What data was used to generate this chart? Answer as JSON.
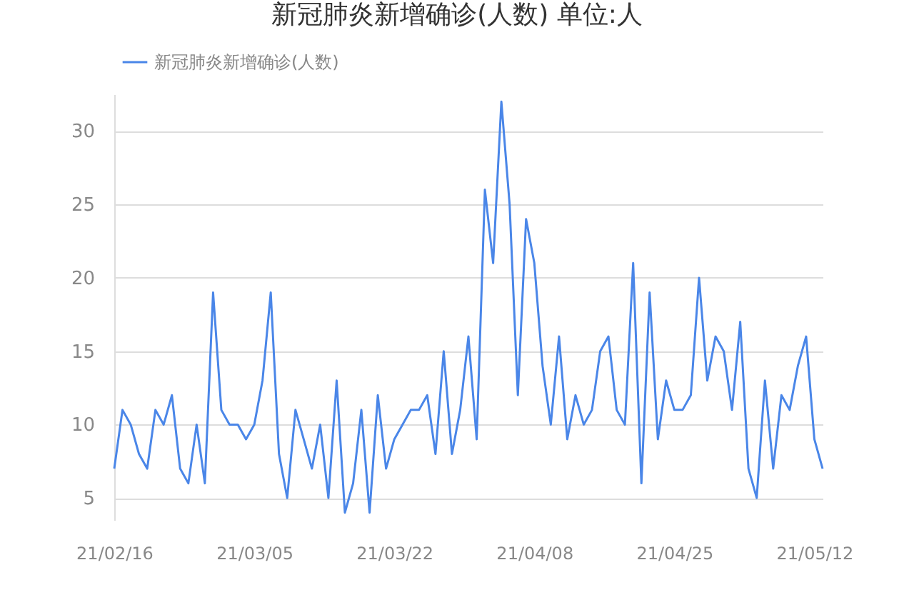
{
  "chart_data": {
    "type": "line",
    "title": "新冠肺炎新增确诊(人数) 单位:人",
    "categories": [
      "21/02/16",
      null,
      null,
      null,
      null,
      null,
      null,
      null,
      null,
      null,
      null,
      null,
      null,
      null,
      null,
      null,
      null,
      "21/03/05",
      null,
      null,
      null,
      null,
      null,
      null,
      null,
      null,
      null,
      null,
      null,
      null,
      null,
      null,
      null,
      null,
      "21/03/22",
      null,
      null,
      null,
      null,
      null,
      null,
      null,
      null,
      null,
      null,
      null,
      null,
      null,
      null,
      null,
      null,
      "21/04/08",
      null,
      null,
      null,
      null,
      null,
      null,
      null,
      null,
      null,
      null,
      null,
      null,
      null,
      null,
      null,
      null,
      "21/04/25",
      null,
      null,
      null,
      null,
      null,
      null,
      null,
      null,
      null,
      null,
      null,
      null,
      null,
      null,
      null,
      null,
      "21/05/12",
      null
    ],
    "series": [
      {
        "name": "新冠肺炎新增确诊(人数)",
        "color": "#4a86e8",
        "values": [
          7,
          11,
          10,
          8,
          7,
          11,
          10,
          12,
          7,
          6,
          10,
          6,
          19,
          11,
          10,
          10,
          9,
          10,
          13,
          19,
          8,
          5,
          11,
          9,
          7,
          10,
          5,
          13,
          4,
          6,
          11,
          4,
          12,
          7,
          9,
          10,
          11,
          11,
          12,
          8,
          15,
          8,
          11,
          16,
          9,
          26,
          21,
          32,
          25,
          12,
          24,
          21,
          14,
          10,
          16,
          9,
          12,
          10,
          11,
          15,
          16,
          11,
          10,
          21,
          6,
          19,
          9,
          13,
          11,
          11,
          12,
          20,
          13,
          16,
          15,
          11,
          17,
          7,
          5,
          13,
          7,
          12,
          11,
          14,
          16,
          9,
          7
        ]
      }
    ],
    "ylim": [
      3.5,
      32.5
    ],
    "yticks": [
      5,
      10,
      15,
      20,
      25,
      30
    ],
    "grid": "y",
    "legend": "top left",
    "marker": "none"
  }
}
